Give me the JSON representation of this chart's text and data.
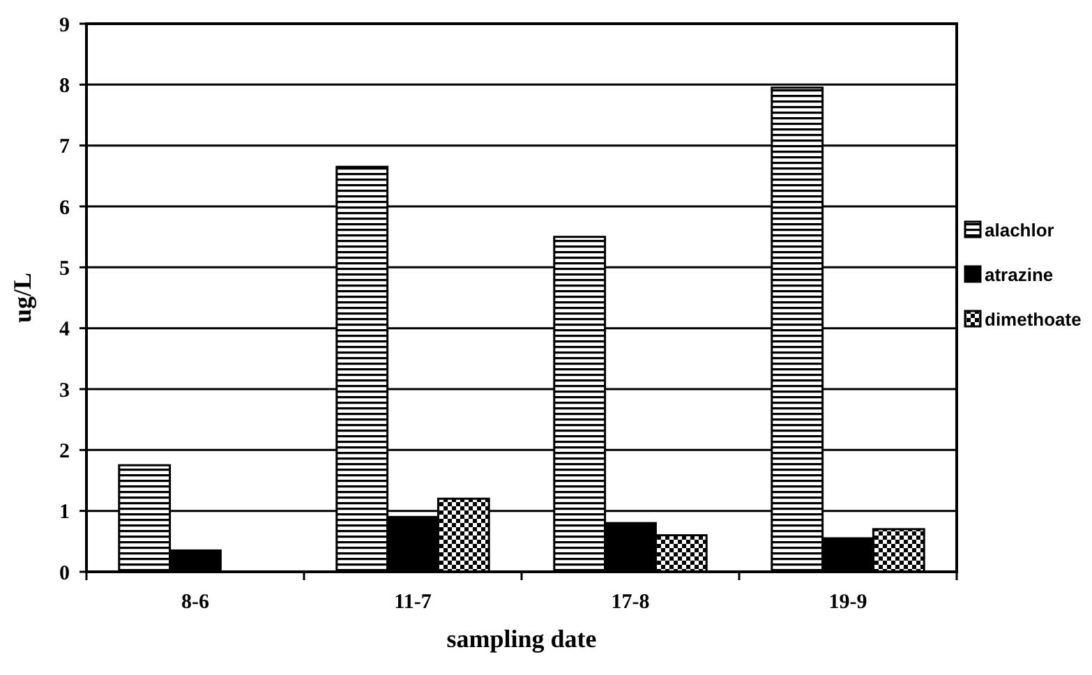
{
  "chart_data": {
    "type": "bar",
    "xlabel": "sampling date",
    "ylabel": "ug/L",
    "categories": [
      "8-6",
      "11-7",
      "17-8",
      "19-9"
    ],
    "series": [
      {
        "name": "alachlor",
        "color": "#000000",
        "values": [
          1.75,
          6.65,
          5.5,
          7.95
        ]
      },
      {
        "name": "atrazine",
        "color": "#000000",
        "values": [
          0.35,
          0.9,
          0.8,
          0.55
        ]
      },
      {
        "name": "dimethoate",
        "color": "#000000",
        "values": [
          null,
          1.2,
          0.6,
          0.7
        ]
      }
    ],
    "ylim": [
      0,
      9
    ],
    "yticks": [
      0,
      1,
      2,
      3,
      4,
      5,
      6,
      7,
      8,
      9
    ],
    "grid": "y",
    "legend": "right"
  }
}
